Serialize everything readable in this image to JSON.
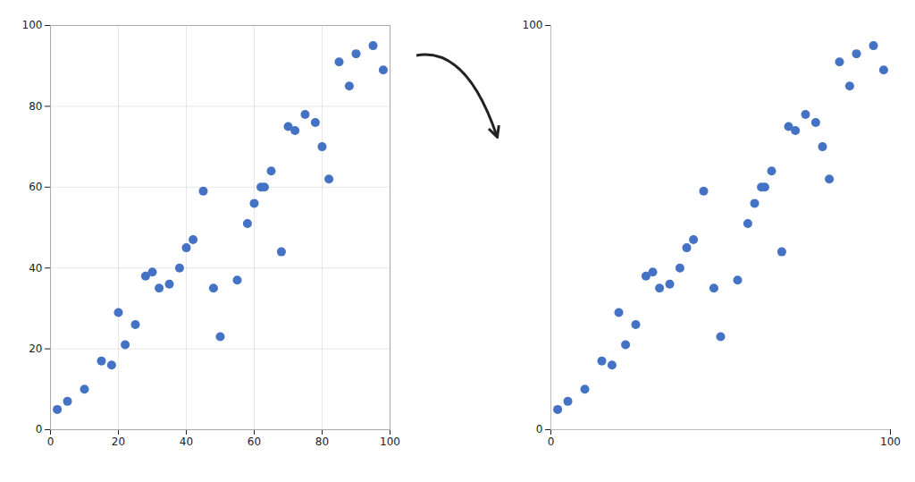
{
  "chart_data": [
    {
      "type": "scatter",
      "x": [
        2,
        5,
        10,
        15,
        18,
        22,
        20,
        25,
        28,
        30,
        32,
        35,
        38,
        40,
        42,
        45,
        48,
        50,
        55,
        58,
        60,
        62,
        63,
        65,
        68,
        70,
        72,
        75,
        78,
        80,
        82,
        85,
        88,
        90,
        95,
        98
      ],
      "values": [
        5,
        7,
        10,
        17,
        16,
        21,
        29,
        26,
        38,
        39,
        35,
        36,
        40,
        45,
        47,
        59,
        35,
        23,
        37,
        51,
        56,
        60,
        60,
        64,
        44,
        75,
        74,
        78,
        76,
        70,
        62,
        91,
        85,
        93,
        95,
        89
      ],
      "color": "#4472C4",
      "xlim": [
        0,
        100
      ],
      "ylim": [
        0,
        100
      ],
      "xticks": [
        0,
        20,
        40,
        60,
        80,
        100
      ],
      "yticks": [
        0,
        20,
        40,
        60,
        80,
        100
      ],
      "grid": true
    },
    {
      "type": "scatter",
      "x": [
        2,
        5,
        10,
        15,
        18,
        22,
        20,
        25,
        28,
        30,
        32,
        35,
        38,
        40,
        42,
        45,
        48,
        50,
        55,
        58,
        60,
        62,
        63,
        65,
        68,
        70,
        72,
        75,
        78,
        80,
        82,
        85,
        88,
        90,
        95,
        98
      ],
      "values": [
        5,
        7,
        10,
        17,
        16,
        21,
        29,
        26,
        38,
        39,
        35,
        36,
        40,
        45,
        47,
        59,
        35,
        23,
        37,
        51,
        56,
        60,
        60,
        64,
        44,
        75,
        74,
        78,
        76,
        70,
        62,
        91,
        85,
        93,
        95,
        89
      ],
      "color": "#4472C4",
      "xlim": [
        0,
        100
      ],
      "ylim": [
        0,
        100
      ],
      "xticks": [
        0,
        100
      ],
      "yticks": [
        0,
        100
      ],
      "grid": false
    }
  ]
}
